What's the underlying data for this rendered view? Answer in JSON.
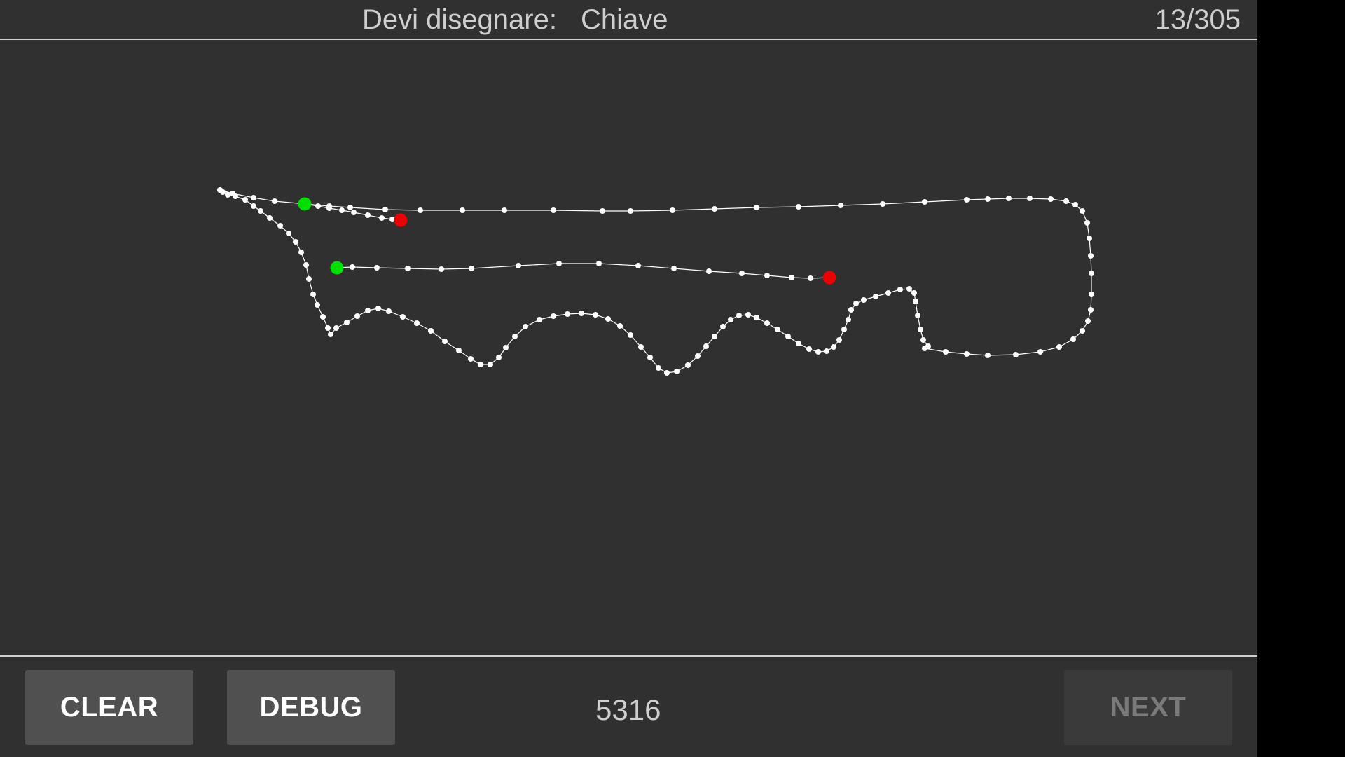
{
  "header": {
    "prompt_label": "Devi disegnare:",
    "target_word": "Chiave",
    "progress": "13/305"
  },
  "footer": {
    "clear_label": "CLEAR",
    "debug_label": "DEBUG",
    "score": "5316",
    "next_label": "NEXT",
    "next_enabled": false
  },
  "colors": {
    "background": "#303030",
    "stroke": "#ffffff",
    "start_marker": "#00e000",
    "end_marker": "#ee0000"
  }
}
